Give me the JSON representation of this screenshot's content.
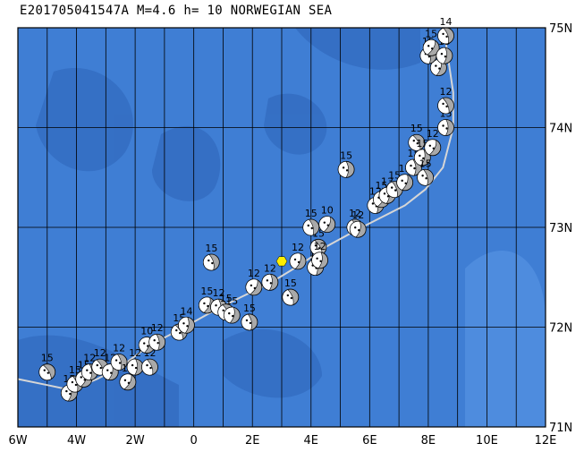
{
  "title": {
    "event_id": "E201705041547A",
    "magnitude": "M=4.6",
    "depth": "h= 10",
    "region": "NORWEGIAN SEA"
  },
  "axes": {
    "lon_range": [
      -6,
      12
    ],
    "lat_range": [
      71,
      75
    ],
    "x_ticks": [
      "6W",
      "4W",
      "2W",
      "0",
      "2E",
      "4E",
      "6E",
      "8E",
      "10E",
      "12E"
    ],
    "y_ticks": [
      "71N",
      "72N",
      "73N",
      "74N",
      "75N"
    ],
    "graticule_lon_step": 1,
    "graticule_lat_step": 1
  },
  "colors": {
    "ocean": "#3f7ed4",
    "ocean_deep": "#2e64b8",
    "ocean_shallow": "#5b98e6",
    "grid": "#000000",
    "plate_boundary": "#d6d6d6",
    "mechanism_compression": "#a9a9a9",
    "mechanism_tension": "#ffffff",
    "event_marker": "#ffee00"
  },
  "event_marker": {
    "lon": 3.0,
    "lat": 72.66,
    "symbol": "yellow-hexagon"
  },
  "plate_boundary": [
    [
      -6.0,
      71.48
    ],
    [
      -5.0,
      71.42
    ],
    [
      -4.2,
      71.37
    ],
    [
      -3.3,
      71.48
    ],
    [
      -2.5,
      71.6
    ],
    [
      -1.5,
      71.82
    ],
    [
      -0.5,
      71.97
    ],
    [
      0.6,
      72.15
    ],
    [
      1.6,
      72.3
    ],
    [
      2.6,
      72.44
    ],
    [
      3.6,
      72.62
    ],
    [
      4.6,
      72.82
    ],
    [
      5.6,
      72.98
    ],
    [
      6.4,
      73.1
    ],
    [
      7.2,
      73.22
    ],
    [
      7.9,
      73.38
    ],
    [
      8.5,
      73.6
    ],
    [
      8.85,
      74.0
    ],
    [
      8.85,
      74.35
    ],
    [
      8.7,
      74.65
    ],
    [
      8.6,
      74.85
    ]
  ],
  "mechanisms": [
    {
      "lon": -5.0,
      "lat": 71.55,
      "label": "15"
    },
    {
      "lon": -4.25,
      "lat": 71.34,
      "label": "15"
    },
    {
      "lon": -4.05,
      "lat": 71.43,
      "label": "15"
    },
    {
      "lon": -3.75,
      "lat": 71.48,
      "label": "15"
    },
    {
      "lon": -3.55,
      "lat": 71.55,
      "label": "12"
    },
    {
      "lon": -3.2,
      "lat": 71.6,
      "label": "12"
    },
    {
      "lon": -2.85,
      "lat": 71.55,
      "label": "12"
    },
    {
      "lon": -2.55,
      "lat": 71.65,
      "label": "12"
    },
    {
      "lon": -2.25,
      "lat": 71.45,
      "label": "15"
    },
    {
      "lon": -2.0,
      "lat": 71.6,
      "label": "12"
    },
    {
      "lon": -1.5,
      "lat": 71.6,
      "label": "12"
    },
    {
      "lon": -1.6,
      "lat": 71.82,
      "label": "10"
    },
    {
      "lon": -1.25,
      "lat": 71.85,
      "label": "12"
    },
    {
      "lon": -0.5,
      "lat": 71.95,
      "label": "15"
    },
    {
      "lon": -0.25,
      "lat": 72.02,
      "label": "14"
    },
    {
      "lon": 0.6,
      "lat": 72.65,
      "label": "15"
    },
    {
      "lon": 0.45,
      "lat": 72.22,
      "label": "15"
    },
    {
      "lon": 0.85,
      "lat": 72.2,
      "label": "12"
    },
    {
      "lon": 1.1,
      "lat": 72.15,
      "label": "15"
    },
    {
      "lon": 1.3,
      "lat": 72.12,
      "label": "15"
    },
    {
      "lon": 1.9,
      "lat": 72.05,
      "label": "15"
    },
    {
      "lon": 2.05,
      "lat": 72.4,
      "label": "12"
    },
    {
      "lon": 2.6,
      "lat": 72.45,
      "label": "12"
    },
    {
      "lon": 3.3,
      "lat": 72.3,
      "label": "15"
    },
    {
      "lon": 3.55,
      "lat": 72.66,
      "label": "12"
    },
    {
      "lon": 4.15,
      "lat": 72.6,
      "label": "15"
    },
    {
      "lon": 4.25,
      "lat": 72.8,
      "label": "15"
    },
    {
      "lon": 4.3,
      "lat": 72.67,
      "label": "12"
    },
    {
      "lon": 4.0,
      "lat": 73.0,
      "label": "15"
    },
    {
      "lon": 4.55,
      "lat": 73.03,
      "label": "10"
    },
    {
      "lon": 5.2,
      "lat": 73.58,
      "label": "15"
    },
    {
      "lon": 5.5,
      "lat": 73.0,
      "label": "12"
    },
    {
      "lon": 5.6,
      "lat": 72.98,
      "label": "12"
    },
    {
      "lon": 6.2,
      "lat": 73.22,
      "label": "12"
    },
    {
      "lon": 6.4,
      "lat": 73.28,
      "label": "15"
    },
    {
      "lon": 6.6,
      "lat": 73.32,
      "label": "13"
    },
    {
      "lon": 6.85,
      "lat": 73.38,
      "label": "15"
    },
    {
      "lon": 7.2,
      "lat": 73.45,
      "label": "15"
    },
    {
      "lon": 7.5,
      "lat": 73.6,
      "label": "15"
    },
    {
      "lon": 7.6,
      "lat": 73.85,
      "label": "15"
    },
    {
      "lon": 7.8,
      "lat": 73.7,
      "label": "15"
    },
    {
      "lon": 7.9,
      "lat": 73.5,
      "label": "15"
    },
    {
      "lon": 8.15,
      "lat": 73.8,
      "label": "12"
    },
    {
      "lon": 8.6,
      "lat": 74.0,
      "label": "15"
    },
    {
      "lon": 8.6,
      "lat": 74.22,
      "label": "12"
    },
    {
      "lon": 8.35,
      "lat": 74.6,
      "label": "15"
    },
    {
      "lon": 8.0,
      "lat": 74.72,
      "label": "15"
    },
    {
      "lon": 8.1,
      "lat": 74.8,
      "label": "15"
    },
    {
      "lon": 8.55,
      "lat": 74.72,
      "label": "15"
    },
    {
      "lon": 8.6,
      "lat": 74.92,
      "label": "14"
    }
  ]
}
